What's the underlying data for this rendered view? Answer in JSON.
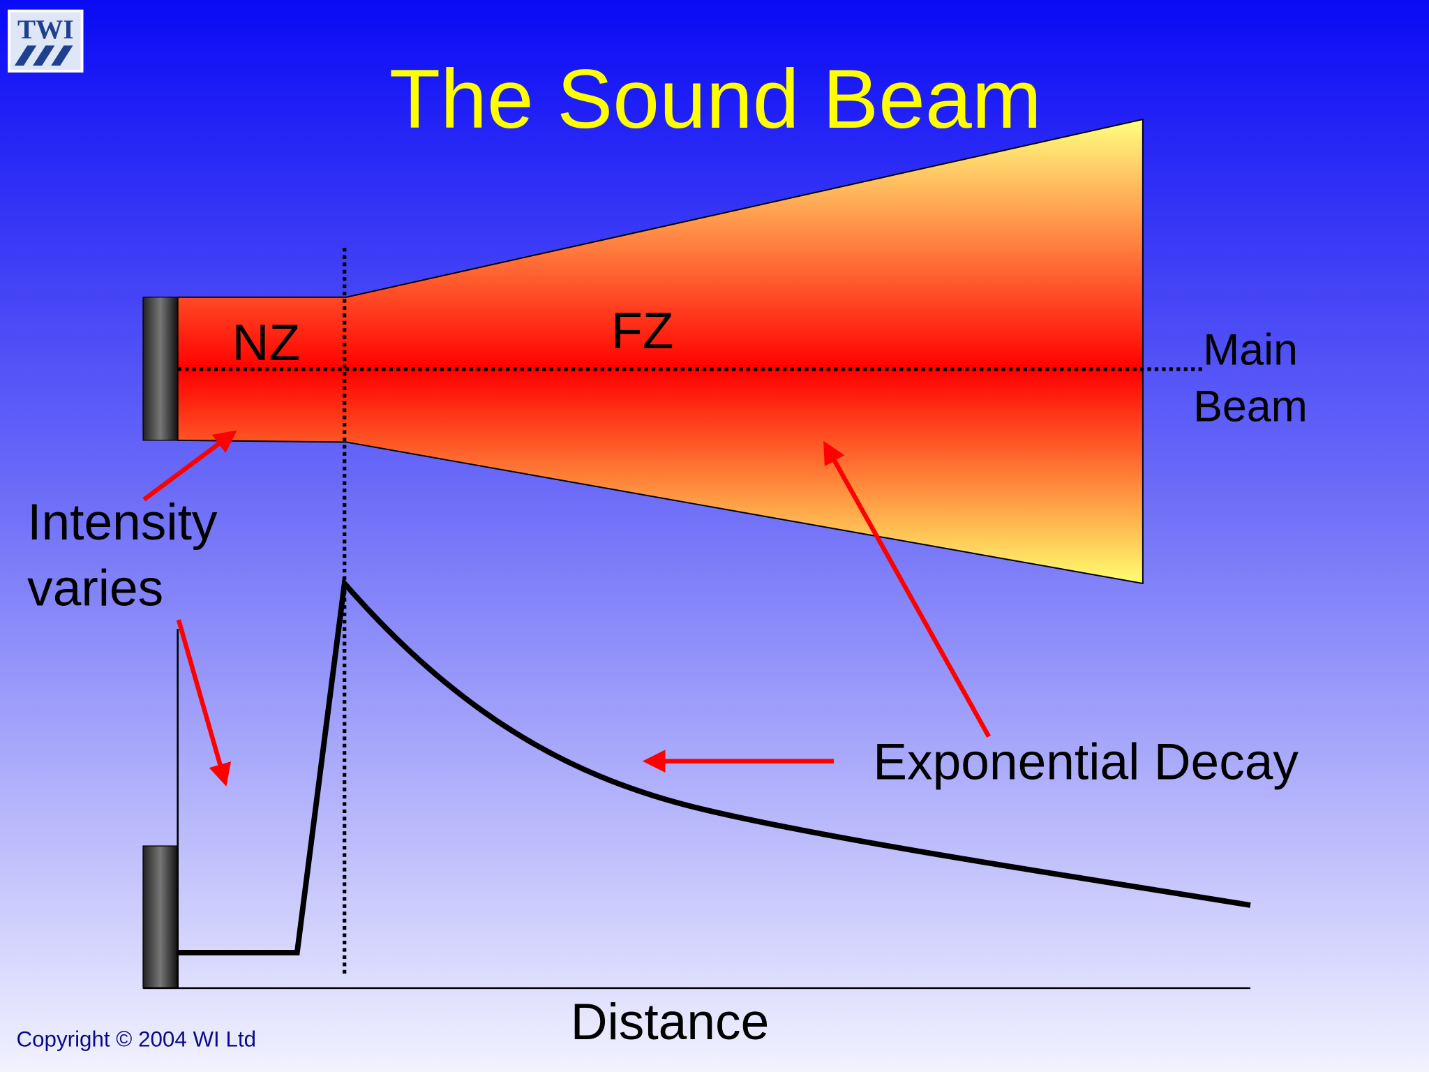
{
  "logo": "TWI",
  "title": "The Sound Beam",
  "zones": {
    "near": "NZ",
    "far": "FZ"
  },
  "labels": {
    "main_beam": [
      "Main",
      "Beam"
    ],
    "intensity": [
      "Intensity",
      "varies"
    ],
    "decay": "Exponential Decay",
    "distance": "Distance"
  },
  "footer": "Copyright © 2004 WI Ltd"
}
